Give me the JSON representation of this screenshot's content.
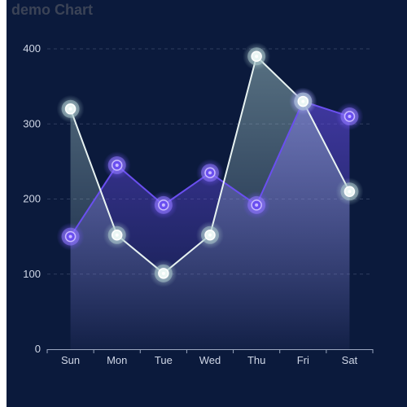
{
  "title": "demo Chart",
  "colors": {
    "background": "#0b1a3c",
    "series_a": "#6a4ff0",
    "series_b": "#e8f3f2",
    "grid": "#2f3d5e",
    "axis": "#9aa6bf"
  },
  "chart_data": {
    "type": "line",
    "categories": [
      "Sun",
      "Mon",
      "Tue",
      "Wed",
      "Thu",
      "Fri",
      "Sat"
    ],
    "series": [
      {
        "values": [
          150,
          245,
          192,
          235,
          192,
          330,
          310
        ]
      },
      {
        "values": [
          320,
          152,
          101,
          152,
          390,
          330,
          210
        ]
      }
    ],
    "ylim": [
      0,
      400
    ],
    "yticks": [
      0,
      100,
      200,
      300,
      400
    ],
    "grid": true,
    "xlabel": "",
    "ylabel": ""
  }
}
